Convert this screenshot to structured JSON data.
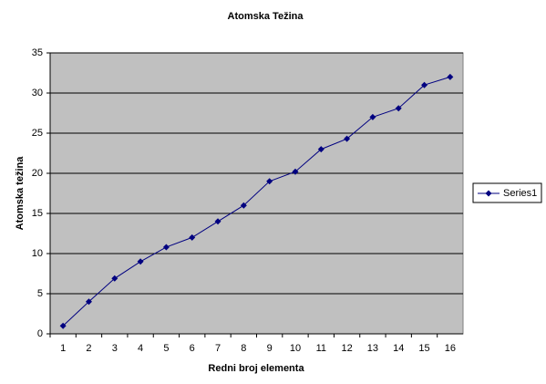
{
  "chart_data": {
    "type": "line",
    "title": "Atomska Težina",
    "x_label": "Redni broj elementa",
    "y_label": "Atomska težina",
    "categories": [
      "1",
      "2",
      "3",
      "4",
      "5",
      "6",
      "7",
      "8",
      "9",
      "10",
      "11",
      "12",
      "13",
      "14",
      "15",
      "16"
    ],
    "series": [
      {
        "name": "Series1",
        "color": "#000080",
        "values": [
          1,
          4,
          6.9,
          9,
          10.8,
          12,
          14,
          16,
          19,
          20.2,
          23,
          24.3,
          27,
          28.1,
          31,
          32
        ]
      }
    ],
    "ylim": [
      0,
      35
    ],
    "yticks": [
      0,
      5,
      10,
      15,
      20,
      25,
      30,
      35
    ],
    "grid": true,
    "legend": "right",
    "plot_background": "#c0c0c0"
  }
}
